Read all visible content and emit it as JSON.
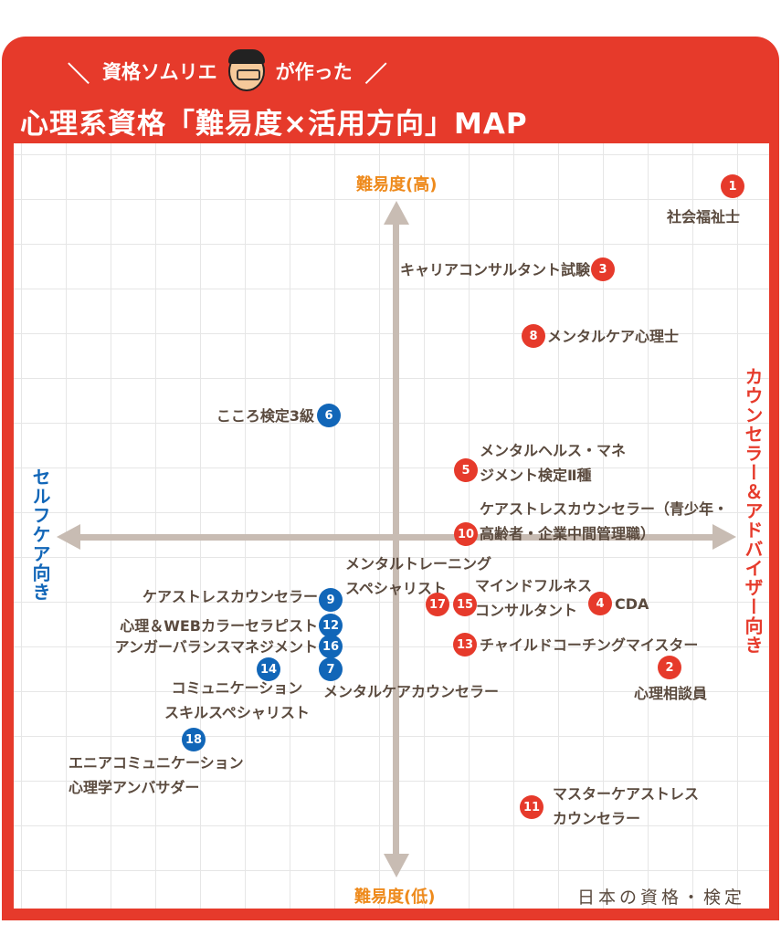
{
  "header": {
    "subtitle_left": "資格ソムリエ",
    "subtitle_right": "が作った",
    "title": "心理系資格「難易度×活用方向」MAP",
    "avatar_icon": "sommelier-face-icon"
  },
  "axes": {
    "top": "難易度(高)",
    "bottom": "難易度(低)",
    "left": "セルフケア向き",
    "right": "カウンセラー＆アドバイザー向き"
  },
  "colors": {
    "counselor": "#e63a2b",
    "selfcare": "#1166b8",
    "axis_top_bottom": "#ee8a1c",
    "frame": "#e63a2b"
  },
  "items": [
    {
      "no": "1",
      "label": "社会福祉士",
      "group": "counselor"
    },
    {
      "no": "2",
      "label": "心理相談員",
      "group": "counselor"
    },
    {
      "no": "3",
      "label": "キャリアコンサルタント試験",
      "group": "counselor"
    },
    {
      "no": "4",
      "label": "CDA",
      "group": "counselor"
    },
    {
      "no": "5",
      "label": [
        "メンタルヘルス・マネ",
        "ジメント検定Ⅱ種"
      ],
      "group": "counselor"
    },
    {
      "no": "6",
      "label": "こころ検定3級",
      "group": "selfcare"
    },
    {
      "no": "7",
      "label": "メンタルケアカウンセラー",
      "group": "selfcare"
    },
    {
      "no": "8",
      "label": "メンタルケア心理士",
      "group": "counselor"
    },
    {
      "no": "9",
      "label": "ケアストレスカウンセラー",
      "group": "selfcare"
    },
    {
      "no": "10",
      "label": [
        "ケアストレスカウンセラー（青少年・",
        "高齢者・企業中間管理職）"
      ],
      "group": "counselor"
    },
    {
      "no": "11",
      "label": [
        "マスターケアストレス",
        "カウンセラー"
      ],
      "group": "counselor"
    },
    {
      "no": "12",
      "label": "心理＆WEBカラーセラピスト",
      "group": "selfcare"
    },
    {
      "no": "13",
      "label": "チャイルドコーチングマイスター",
      "group": "counselor"
    },
    {
      "no": "14",
      "label": [
        "コミュニケーション",
        "スキルスペシャリスト"
      ],
      "group": "selfcare"
    },
    {
      "no": "15",
      "label": [
        "マインドフルネス",
        "コンサルタント"
      ],
      "group": "counselor"
    },
    {
      "no": "16",
      "label": "アンガーバランスマネジメント",
      "group": "selfcare"
    },
    {
      "no": "17",
      "label": [
        "メンタルトレーニング",
        "スペシャリスト"
      ],
      "group": "counselor"
    },
    {
      "no": "18",
      "label": [
        "エニアコミュニケーション",
        "心理学アンバサダー"
      ],
      "group": "selfcare"
    }
  ],
  "logo": "日本の資格・検定"
}
